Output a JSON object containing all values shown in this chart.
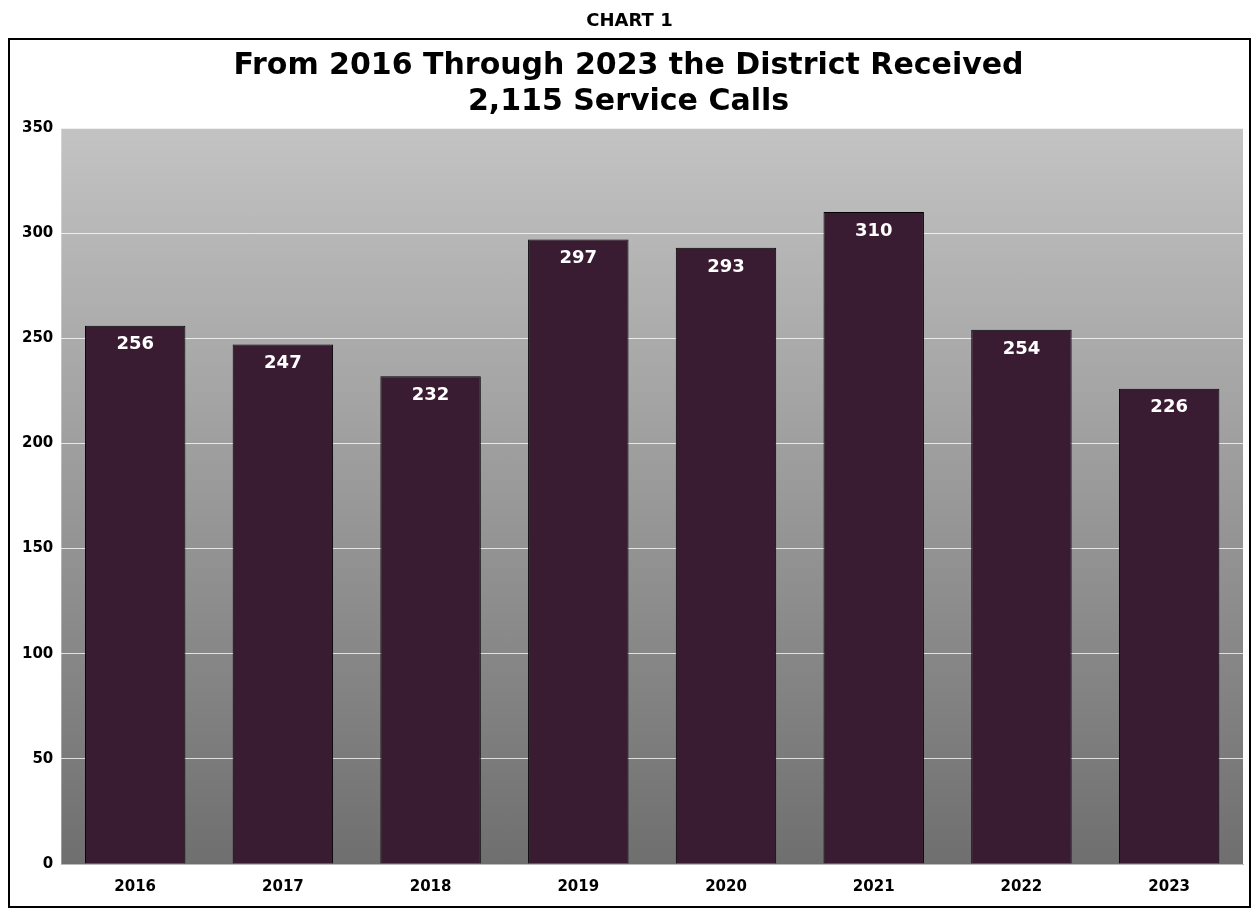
{
  "chart_data": {
    "type": "bar",
    "title": [
      "From 2016 Through 2023 the District Received",
      "2,115 Service Calls"
    ],
    "annotations": [
      "CHART 1"
    ],
    "categories": [
      "2016",
      "2017",
      "2018",
      "2019",
      "2020",
      "2021",
      "2022",
      "2023"
    ],
    "values": [
      256,
      247,
      232,
      297,
      293,
      310,
      254,
      226
    ],
    "color": "#3a1c32",
    "ylim": [
      0,
      350
    ],
    "yticks": [
      0,
      50,
      100,
      150,
      200,
      250,
      300,
      350
    ],
    "grid": "y",
    "data_labels": true,
    "legend": false
  }
}
